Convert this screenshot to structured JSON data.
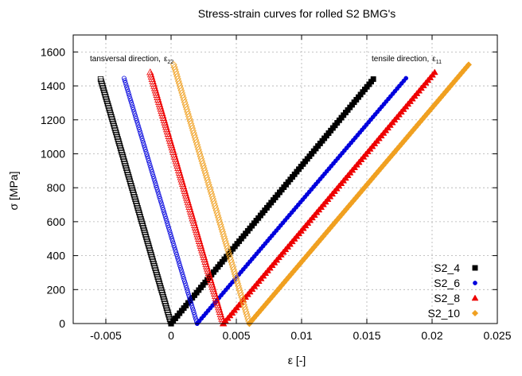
{
  "chart_data": {
    "type": "scatter",
    "title": "Stress-strain curves for rolled S2 BMG's",
    "xlabel": "ε [-]",
    "ylabel": "σ [MPa]",
    "xlim": [
      -0.0075,
      0.025
    ],
    "ylim": [
      0,
      1700
    ],
    "x_ticks": [
      -0.005,
      0,
      0.005,
      0.01,
      0.015,
      0.02,
      0.025
    ],
    "x_tick_labels": [
      "-0.005",
      "0",
      "0.005",
      "0.01",
      "0.015",
      "0.02",
      "0.025"
    ],
    "y_ticks": [
      0,
      200,
      400,
      600,
      800,
      1000,
      1200,
      1400,
      1600
    ],
    "y_tick_labels": [
      "0",
      "200",
      "400",
      "600",
      "800",
      "1000",
      "1200",
      "1400",
      "1600"
    ],
    "grid": true,
    "legend_position": "bottom-right",
    "annotations": [
      {
        "text": "tansversal direction,",
        "sym": "ε",
        "sub": "22"
      },
      {
        "text": "tensile direction,",
        "sym": "ε",
        "sub": "11"
      }
    ],
    "series": [
      {
        "name": "S2_4",
        "color": "#000000",
        "marker": "square",
        "tensile": {
          "x_start": 0.0,
          "x_end": 0.0155,
          "y_end": 1440
        },
        "transverse": {
          "x_start": 0.0,
          "x_end": -0.0054,
          "y_end": 1440
        }
      },
      {
        "name": "S2_6",
        "color": "#0000dd",
        "marker": "circle",
        "tensile": {
          "x_start": 0.002,
          "x_end": 0.018,
          "y_end": 1445
        },
        "transverse": {
          "x_start": 0.002,
          "x_end": -0.0036,
          "y_end": 1445
        }
      },
      {
        "name": "S2_8",
        "color": "#ee0000",
        "marker": "triangle",
        "tensile": {
          "x_start": 0.004,
          "x_end": 0.0202,
          "y_end": 1480
        },
        "transverse": {
          "x_start": 0.004,
          "x_end": -0.0016,
          "y_end": 1480
        }
      },
      {
        "name": "S2_10",
        "color": "#f0a020",
        "marker": "diamond",
        "tensile": {
          "x_start": 0.006,
          "x_end": 0.0228,
          "y_end": 1525
        },
        "transverse": {
          "x_start": 0.006,
          "x_end": 0.0002,
          "y_end": 1525
        }
      }
    ]
  }
}
